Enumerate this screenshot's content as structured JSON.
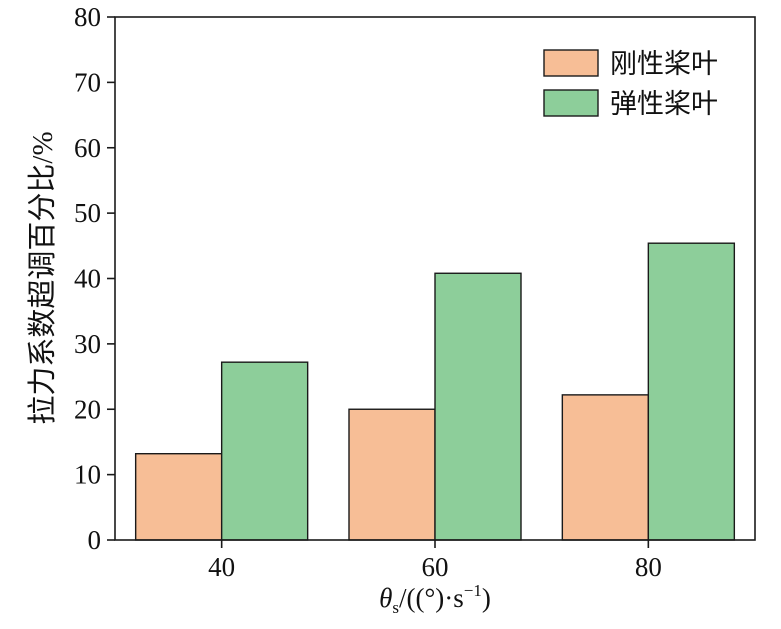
{
  "chart_data": {
    "type": "bar",
    "categories": [
      "40",
      "60",
      "80"
    ],
    "series": [
      {
        "name": "刚性桨叶",
        "values": [
          13.2,
          20.0,
          22.2
        ],
        "color": "#F7BE96"
      },
      {
        "name": "弹性桨叶",
        "values": [
          27.2,
          40.8,
          45.4
        ],
        "color": "#8DCE9A"
      }
    ],
    "ylim": [
      0,
      80
    ],
    "yticks": [
      "0",
      "10",
      "20",
      "30",
      "40",
      "50",
      "60",
      "70",
      "80"
    ],
    "ylabel": "拉力系数超调百分比/%",
    "xlabel": {
      "theta": "θ",
      "sub": "s",
      "rest": "/((°)·s",
      "sup": "−1",
      "close": ")"
    },
    "grid": false,
    "legend_position": "top-right",
    "edge_color": "#1a1a1a"
  }
}
